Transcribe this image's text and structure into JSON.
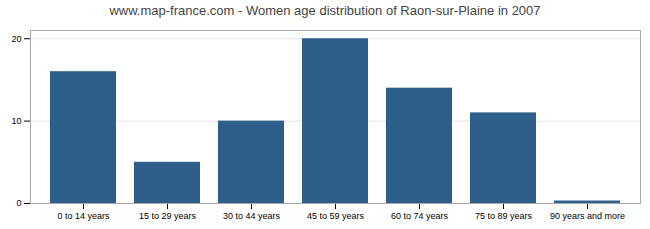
{
  "chart_data": {
    "type": "bar",
    "title": "www.map-france.com - Women age distribution of Raon-sur-Plaine in 2007",
    "categories": [
      "0 to 14 years",
      "15 to 29 years",
      "30 to 44 years",
      "45 to 59 years",
      "60 to 74 years",
      "75 to 89 years",
      "90 years and more"
    ],
    "values": [
      16,
      5,
      10,
      20,
      14,
      11,
      0.3
    ],
    "color": "#2e5f8a",
    "ylim": [
      0,
      21
    ],
    "yticks": [
      0,
      10,
      20
    ],
    "grid": true
  }
}
